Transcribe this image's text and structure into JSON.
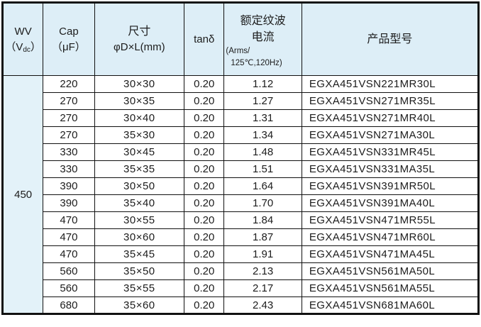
{
  "table_title": "capacitor-ratings-table",
  "header": {
    "wv": {
      "line1": "WV",
      "l2_pre": "（V",
      "l2_sub": "dc",
      "l2_suf": "）"
    },
    "cap": {
      "line1": "Cap",
      "line2": "（μF）"
    },
    "size": {
      "line1": "尺寸",
      "line2": "φD×L(mm)"
    },
    "tan_delta": "tanδ",
    "ripple": {
      "line1": "额定纹波",
      "line2": "电流",
      "line3": "(Arms/",
      "line4": "125℃,120Hz)"
    },
    "model": "产品型号"
  },
  "wv_rating": "450",
  "rows": [
    {
      "cap": "220",
      "size": "30×30",
      "tan": "0.20",
      "ripple": "1.12",
      "model": "EGXA451VSN221MR30L"
    },
    {
      "cap": "270",
      "size": "30×35",
      "tan": "0.20",
      "ripple": "1.27",
      "model": "EGXA451VSN271MR35L"
    },
    {
      "cap": "270",
      "size": "30×40",
      "tan": "0.20",
      "ripple": "1.31",
      "model": "EGXA451VSN271MR40L"
    },
    {
      "cap": "270",
      "size": "35×30",
      "tan": "0.20",
      "ripple": "1.34",
      "model": "EGXA451VSN271MA30L"
    },
    {
      "cap": "330",
      "size": "30×45",
      "tan": "0.20",
      "ripple": "1.48",
      "model": "EGXA451VSN331MR45L"
    },
    {
      "cap": "330",
      "size": "35×35",
      "tan": "0.20",
      "ripple": "1.51",
      "model": "EGXA451VSN331MA35L"
    },
    {
      "cap": "390",
      "size": "30×50",
      "tan": "0.20",
      "ripple": "1.64",
      "model": "EGXA451VSN391MR50L"
    },
    {
      "cap": "390",
      "size": "35×40",
      "tan": "0.20",
      "ripple": "1.70",
      "model": "EGXA451VSN391MA40L"
    },
    {
      "cap": "470",
      "size": "30×55",
      "tan": "0.20",
      "ripple": "1.84",
      "model": "EGXA451VSN471MR55L"
    },
    {
      "cap": "470",
      "size": "30×60",
      "tan": "0.20",
      "ripple": "1.87",
      "model": "EGXA451VSN471MR60L"
    },
    {
      "cap": "470",
      "size": "35×45",
      "tan": "0.20",
      "ripple": "1.91",
      "model": "EGXA451VSN471MA45L"
    },
    {
      "cap": "560",
      "size": "35×50",
      "tan": "0.20",
      "ripple": "2.13",
      "model": "EGXA451VSN561MA50L"
    },
    {
      "cap": "560",
      "size": "35×55",
      "tan": "0.20",
      "ripple": "2.17",
      "model": "EGXA451VSN561MA55L"
    },
    {
      "cap": "680",
      "size": "35×60",
      "tan": "0.20",
      "ripple": "2.43",
      "model": "EGXA451VSN681MA60L"
    }
  ],
  "colors": {
    "header_bg": "#ddeef7",
    "wv_cell_bg": "#e3f2f9",
    "border": "#111111",
    "text": "#1c1c1c"
  }
}
